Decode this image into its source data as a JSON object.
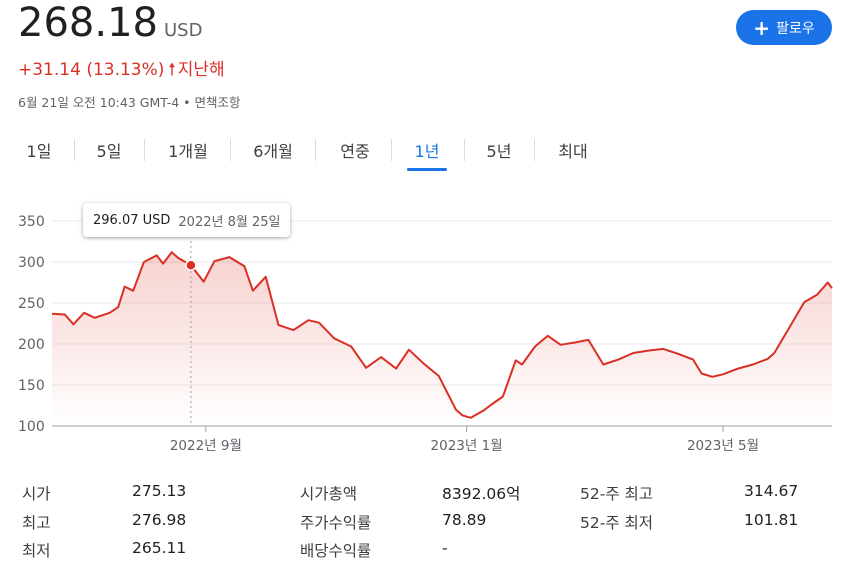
{
  "quote": {
    "price": "268.18",
    "currency": "USD",
    "change": "+31.14 (13.13%)",
    "change_period": "지난해",
    "timestamp": "6월 21일 오전 10:43 GMT-4 • 면책조항"
  },
  "follow_button": {
    "label": "팔로우"
  },
  "tabs": [
    "1일",
    "5일",
    "1개월",
    "6개월",
    "연중",
    "1년",
    "5년",
    "최대"
  ],
  "active_tab": "1년",
  "tooltip": {
    "price": "296.07 USD",
    "date": "2022년 8월 25일"
  },
  "colors": {
    "line": "#d93025",
    "accent": "#1a73e8",
    "fill": "#fce8e6"
  },
  "chart_data": {
    "type": "area",
    "ylim": [
      100,
      350
    ],
    "y_ticks": [
      100,
      150,
      200,
      250,
      300,
      350
    ],
    "x_tick_labels": [
      "2022년 9월",
      "2023년 1월",
      "2023년 5월"
    ],
    "x_tick_dates": [
      "2022-09-01",
      "2023-01-01",
      "2023-05-01"
    ],
    "x_range": [
      "2022-06-21",
      "2023-06-21"
    ],
    "highlight": {
      "date": "2022-08-25",
      "value": 296.07
    },
    "series": [
      {
        "dates": [
          "2022-06-21",
          "2022-06-27",
          "2022-07-01",
          "2022-07-06",
          "2022-07-11",
          "2022-07-18",
          "2022-07-22",
          "2022-07-25",
          "2022-07-29",
          "2022-08-03",
          "2022-08-09",
          "2022-08-12",
          "2022-08-16",
          "2022-08-19",
          "2022-08-25",
          "2022-08-31",
          "2022-09-05",
          "2022-09-12",
          "2022-09-19",
          "2022-09-23",
          "2022-09-29",
          "2022-10-05",
          "2022-10-12",
          "2022-10-19",
          "2022-10-24",
          "2022-10-31",
          "2022-11-08",
          "2022-11-15",
          "2022-11-22",
          "2022-11-29",
          "2022-12-05",
          "2022-12-12",
          "2022-12-19",
          "2022-12-27",
          "2022-12-30",
          "2023-01-03",
          "2023-01-09",
          "2023-01-12",
          "2023-01-18",
          "2023-01-24",
          "2023-01-27",
          "2023-02-02",
          "2023-02-08",
          "2023-02-14",
          "2023-02-21",
          "2023-02-27",
          "2023-03-06",
          "2023-03-13",
          "2023-03-20",
          "2023-03-27",
          "2023-04-03",
          "2023-04-10",
          "2023-04-17",
          "2023-04-21",
          "2023-04-26",
          "2023-05-01",
          "2023-05-08",
          "2023-05-15",
          "2023-05-22",
          "2023-05-25",
          "2023-06-01",
          "2023-06-08",
          "2023-06-14",
          "2023-06-19",
          "2023-06-21"
        ],
        "values": [
          237,
          236,
          224,
          238,
          232,
          238,
          245,
          270,
          265,
          300,
          308,
          298,
          312,
          305,
          296.07,
          276,
          301,
          306,
          295,
          265,
          282,
          223,
          217,
          229,
          226,
          207,
          197,
          171,
          184,
          170,
          193,
          176,
          161,
          120,
          113,
          110,
          119,
          125,
          136,
          180,
          175,
          197,
          210,
          199,
          202,
          205,
          175,
          181,
          189,
          192,
          194,
          188,
          181,
          164,
          160,
          163,
          170,
          175,
          182,
          189,
          220,
          251,
          260,
          275,
          268.18
        ]
      }
    ]
  },
  "stats": [
    {
      "label": "시가",
      "value": "275.13"
    },
    {
      "label": "최고",
      "value": "276.98"
    },
    {
      "label": "최저",
      "value": "265.11"
    },
    {
      "label": "시가총액",
      "value": "8392.06억"
    },
    {
      "label": "주가수익률",
      "value": "78.89"
    },
    {
      "label": "배당수익률",
      "value": "-"
    },
    {
      "label": "52-주 최고",
      "value": "314.67"
    },
    {
      "label": "52-주 최저",
      "value": "101.81"
    }
  ]
}
